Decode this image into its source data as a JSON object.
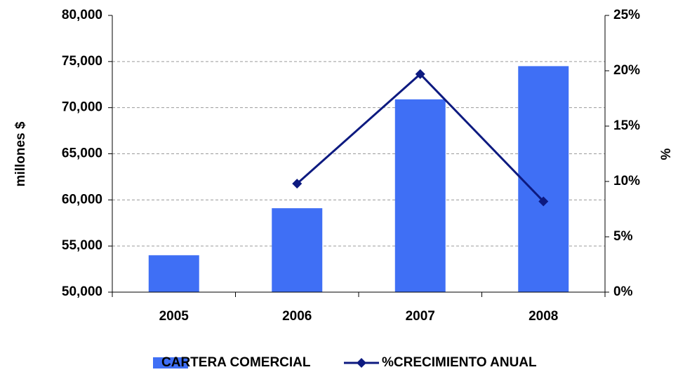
{
  "chart_data": {
    "type": "bar_line",
    "categories": [
      "2005",
      "2006",
      "2007",
      "2008"
    ],
    "series": [
      {
        "name": "CARTERA COMERCIAL",
        "type": "bar",
        "color": "#3f6ff5",
        "values": [
          54000,
          59100,
          70900,
          74500
        ]
      },
      {
        "name": "%CRECIMIENTO ANUAL",
        "type": "line",
        "axis": "y2",
        "color": "#0d1a80",
        "values": [
          null,
          9.8,
          19.7,
          8.2
        ]
      }
    ],
    "ylabel": "millones $",
    "y2label": "%",
    "ylim": [
      50000,
      80000
    ],
    "yticks": [
      {
        "value": 50000,
        "label": "50,000"
      },
      {
        "value": 55000,
        "label": "55,000"
      },
      {
        "value": 60000,
        "label": "60,000"
      },
      {
        "value": 65000,
        "label": "65,000"
      },
      {
        "value": 70000,
        "label": "70,000"
      },
      {
        "value": 75000,
        "label": "75,000"
      },
      {
        "value": 80000,
        "label": "80,000"
      }
    ],
    "y2lim": [
      0,
      25
    ],
    "y2ticks": [
      {
        "value": 0,
        "label": "0%"
      },
      {
        "value": 5,
        "label": "5%"
      },
      {
        "value": 10,
        "label": "10%"
      },
      {
        "value": 15,
        "label": "15%"
      },
      {
        "value": 20,
        "label": "20%"
      },
      {
        "value": 25,
        "label": "25%"
      }
    ],
    "grid": true,
    "legend": "bottom"
  }
}
